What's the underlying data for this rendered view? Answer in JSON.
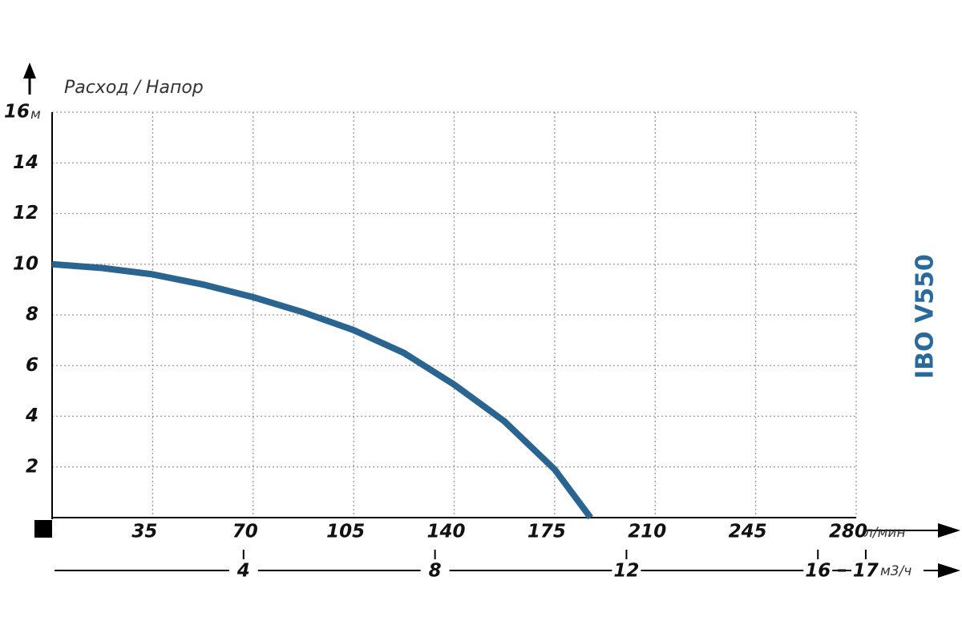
{
  "chart_data": {
    "type": "line",
    "title": "Расход / Напор",
    "side_label": "IBO V550",
    "y_unit": "м",
    "x_unit": "л/мин",
    "x2_unit": "м3/ч",
    "x": [
      0,
      17.5,
      35,
      52.5,
      70,
      87.5,
      105,
      122.5,
      140,
      157.5,
      175,
      187.5
    ],
    "values": [
      10,
      9.85,
      9.6,
      9.2,
      8.7,
      8.1,
      7.4,
      6.5,
      5.25,
      3.8,
      1.9,
      0
    ],
    "color": "#2a6591",
    "xlim": [
      0,
      280
    ],
    "xticks": [
      35,
      70,
      105,
      140,
      175,
      210,
      245,
      280
    ],
    "ylim": [
      0,
      16
    ],
    "yticks": [
      2,
      4,
      6,
      8,
      10,
      12,
      14,
      16
    ],
    "x2lim": [
      0,
      16.8
    ],
    "x2ticks": [
      4,
      8,
      12,
      16,
      17
    ],
    "grid": true
  }
}
